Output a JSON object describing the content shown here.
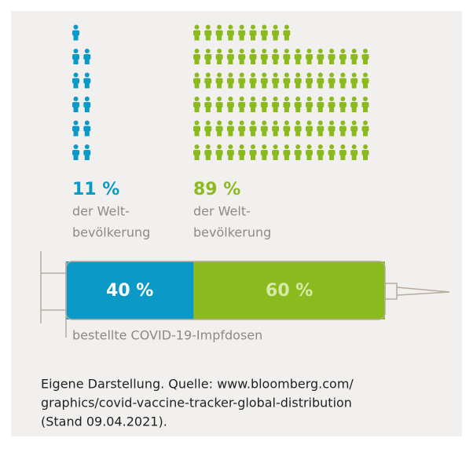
{
  "chart_data": [
    {
      "type": "pictogram",
      "series": [
        {
          "name": [
            "der Welt-",
            "bevölkerung"
          ],
          "color": "#0b9ac8",
          "value": 11,
          "value_label": "11 %"
        },
        {
          "name": [
            "der Welt-",
            "bevölkerung"
          ],
          "color": "#8bba1f",
          "value": 89,
          "value_label": "89 %"
        }
      ]
    },
    {
      "type": "syringe-bar",
      "xlim": [
        0,
        100
      ],
      "label": "bestellte COVID-19-Impfdosen",
      "series": [
        {
          "color": "#0b9ac8",
          "value": 40,
          "value_label": "40 %"
        },
        {
          "color": "#8bba1f",
          "value": 60,
          "value_label": "60 %"
        }
      ]
    }
  ],
  "source": [
    "Eigene Darstellung. Quelle: www.bloomberg.com/",
    "graphics/covid-vaccine-tracker-global-distribution",
    "(Stand 09.04.2021)."
  ]
}
